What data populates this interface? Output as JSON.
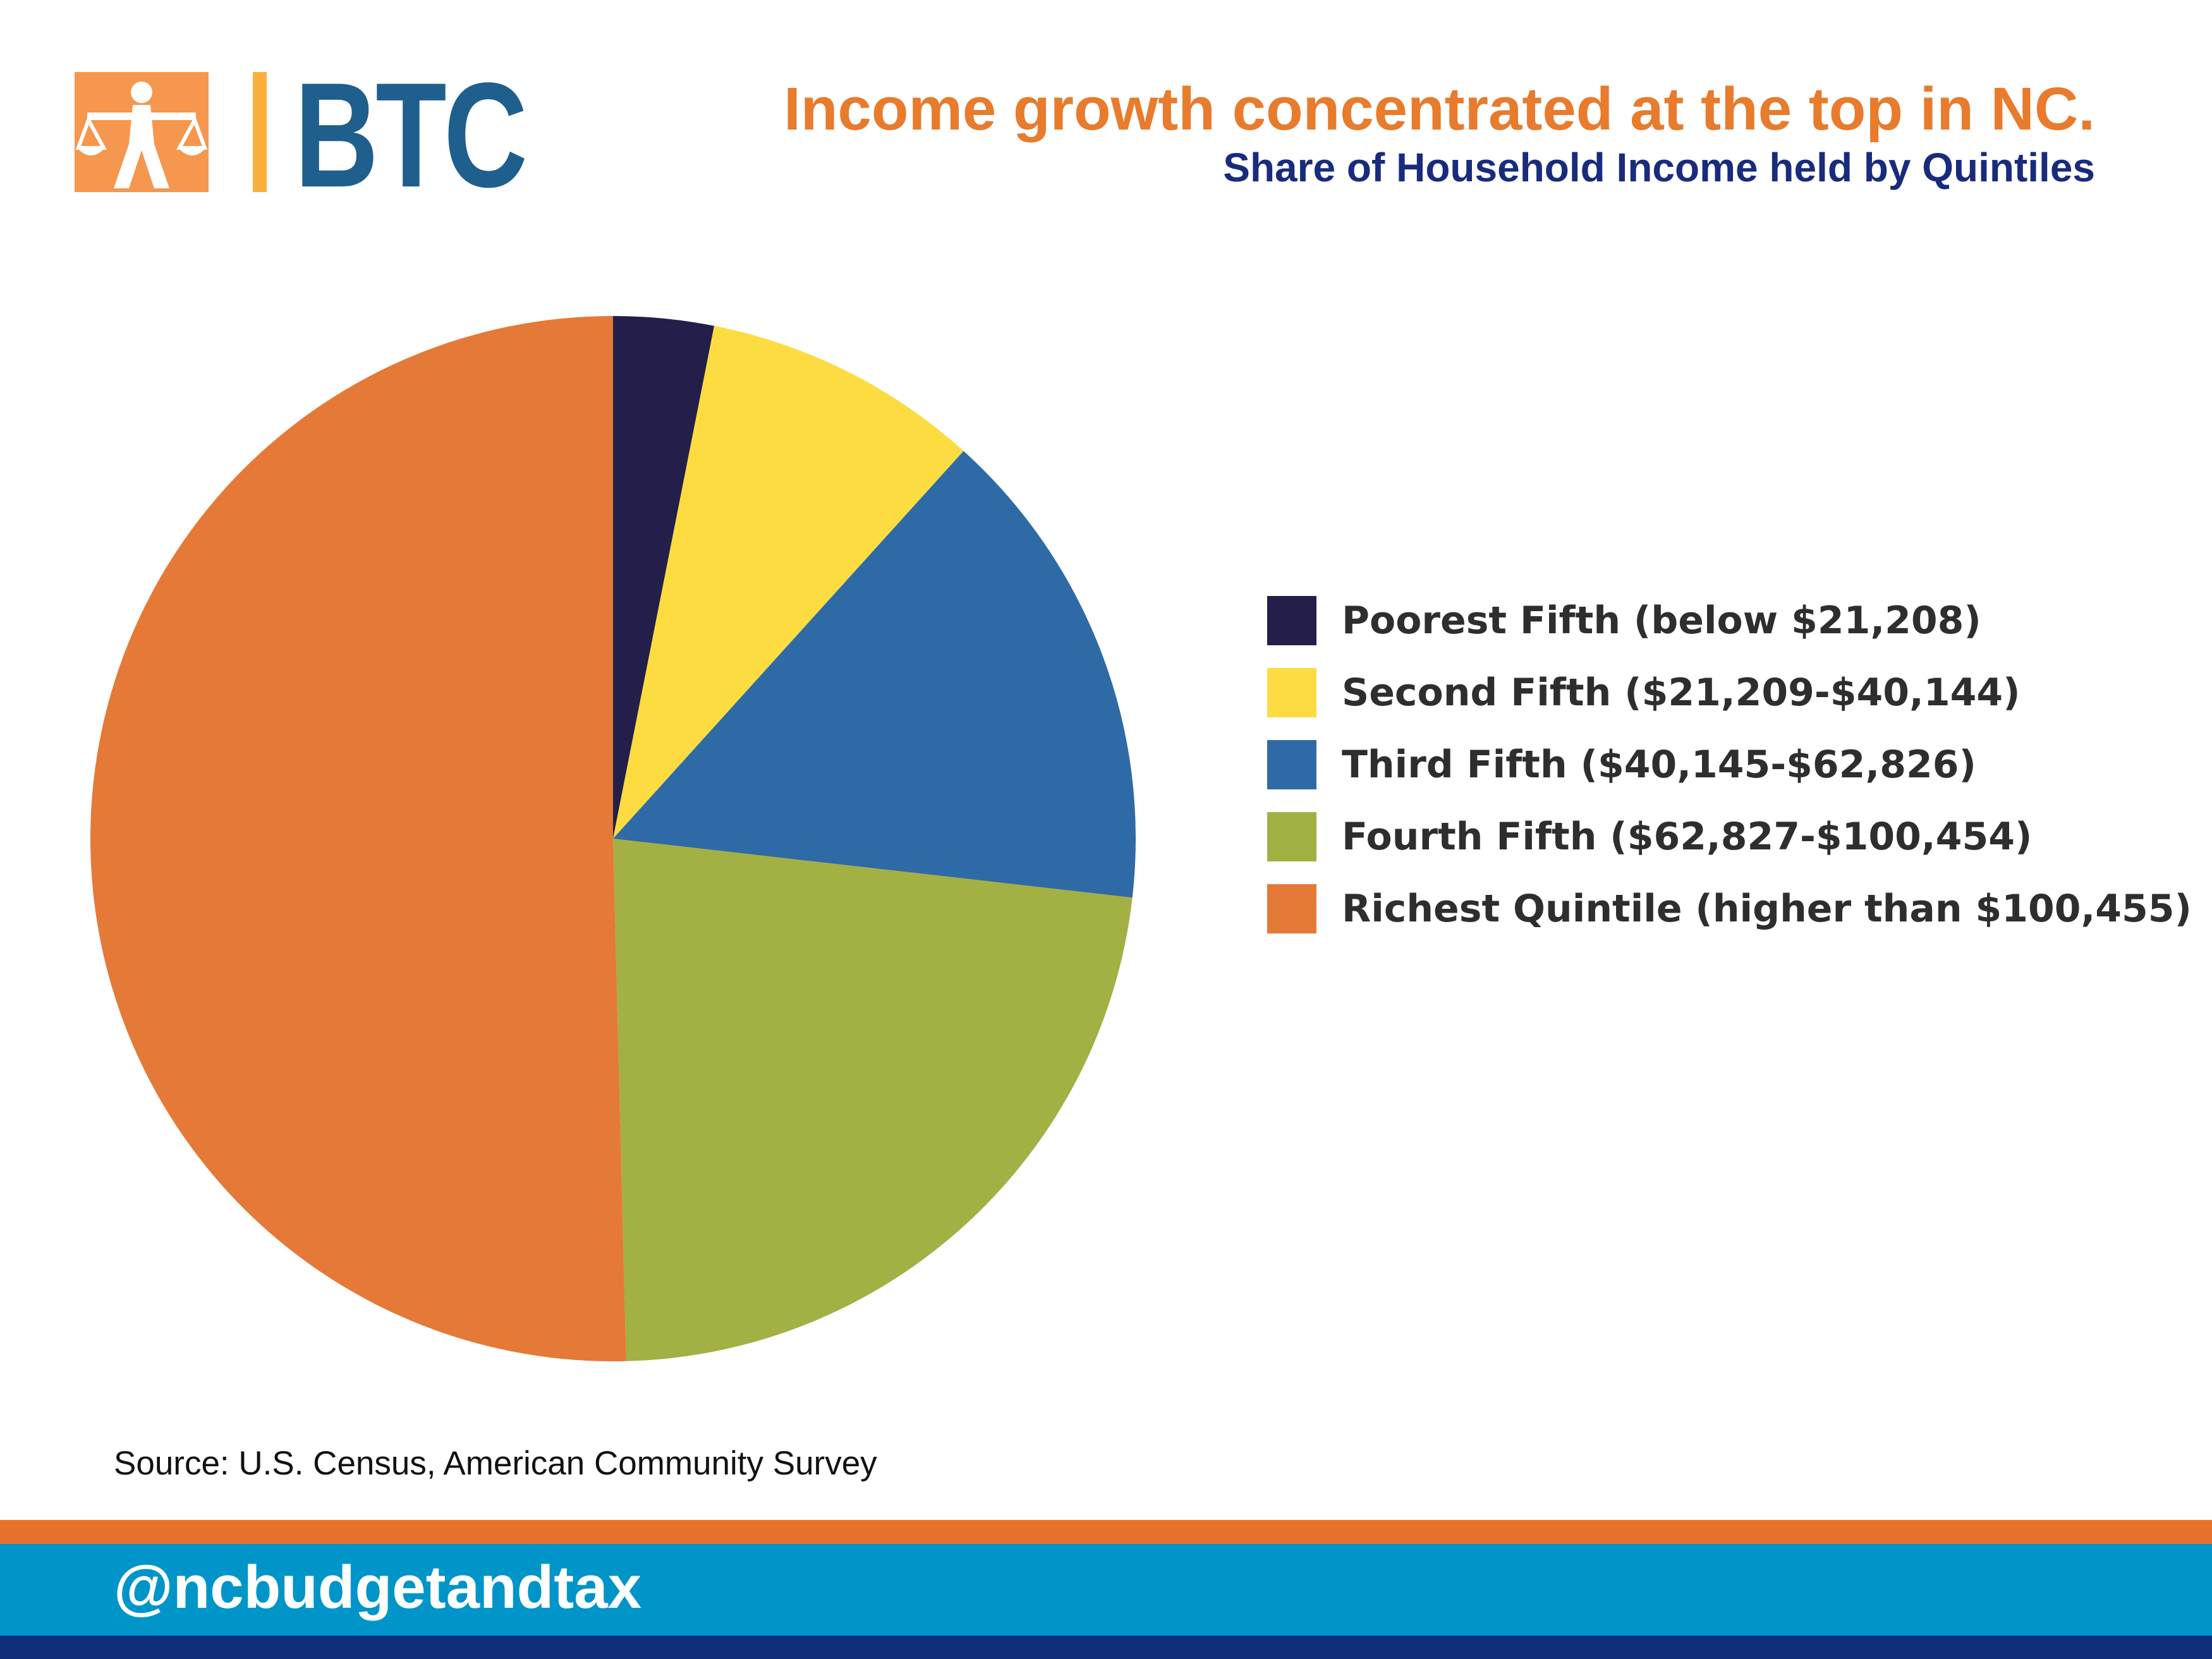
{
  "header": {
    "logo_text": "BTC",
    "title": "Income growth concentrated at the top in NC.",
    "subtitle": "Share of Household Income held by Quintiles"
  },
  "colors": {
    "title": "#e87b2c",
    "subtitle": "#182b7c",
    "logo_blue": "#1e5f8e",
    "logo_orange": "#f5974f",
    "logo_bar": "#fbb03b",
    "band_orange": "#e8722c",
    "band_blue": "#0095c8",
    "band_navy": "#0f2d78"
  },
  "chart_data": {
    "type": "pie",
    "title": "",
    "legend_position": "right",
    "categories": [
      "Poorest Fifth (below $21,208)",
      "Second Fifth ($21,209-$40,144)",
      "Third Fifth ($40,145-$62,826)",
      "Fourth Fifth ($62,827-$100,454)",
      "Richest Quintile (higher than $100,455)"
    ],
    "values": [
      3.1,
      8.6,
      15.1,
      22.8,
      50.4
    ],
    "colors": [
      "#231f4a",
      "#fcdc41",
      "#2e6aa6",
      "#a3b043",
      "#e57938"
    ]
  },
  "footer": {
    "source": "Source: U.S. Census, American Community Survey",
    "handle": "@ncbudgetandtax"
  }
}
